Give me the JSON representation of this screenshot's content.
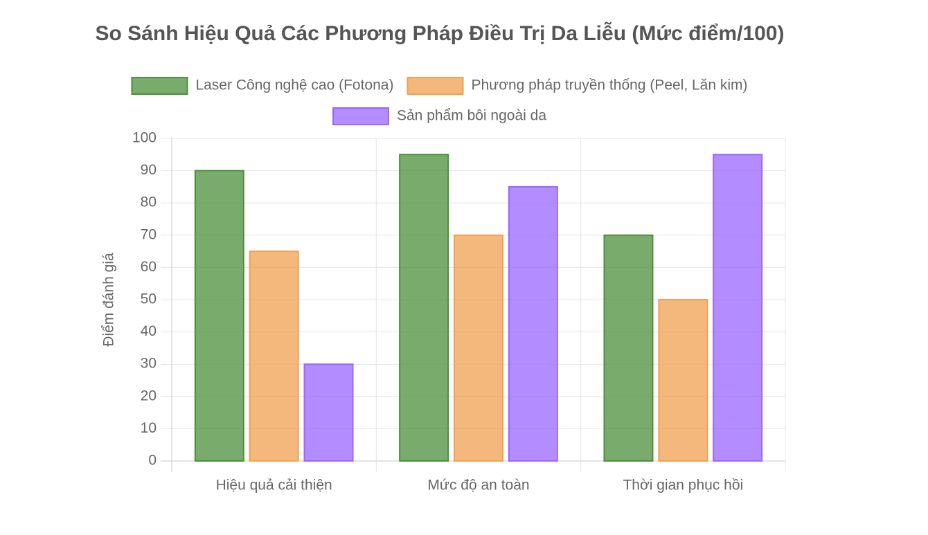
{
  "chart_data": {
    "type": "bar",
    "title": "So Sánh Hiệu Quả Các Phương Pháp Điều Trị Da Liễu (Mức điểm/100)",
    "y_label": "Điểm đánh giá",
    "categories": [
      "Hiệu quả cải thiện",
      "Mức độ an toàn",
      "Thời gian phục hồi"
    ],
    "series": [
      {
        "name": "Laser Công nghệ cao (Fotona)",
        "color": "#4c8f3c",
        "values": [
          90,
          95,
          70
        ]
      },
      {
        "name": "Phương pháp truyền thống (Peel, Lăn kim)",
        "color": "#f0a050",
        "values": [
          65,
          70,
          50
        ]
      },
      {
        "name": "Sản phẩm bôi ngoài da",
        "color": "#9966ff",
        "values": [
          30,
          85,
          95
        ]
      }
    ],
    "ylim": [
      0,
      100
    ],
    "yticks": [
      0,
      10,
      20,
      30,
      40,
      50,
      60,
      70,
      80,
      90,
      100
    ],
    "grid": true
  }
}
